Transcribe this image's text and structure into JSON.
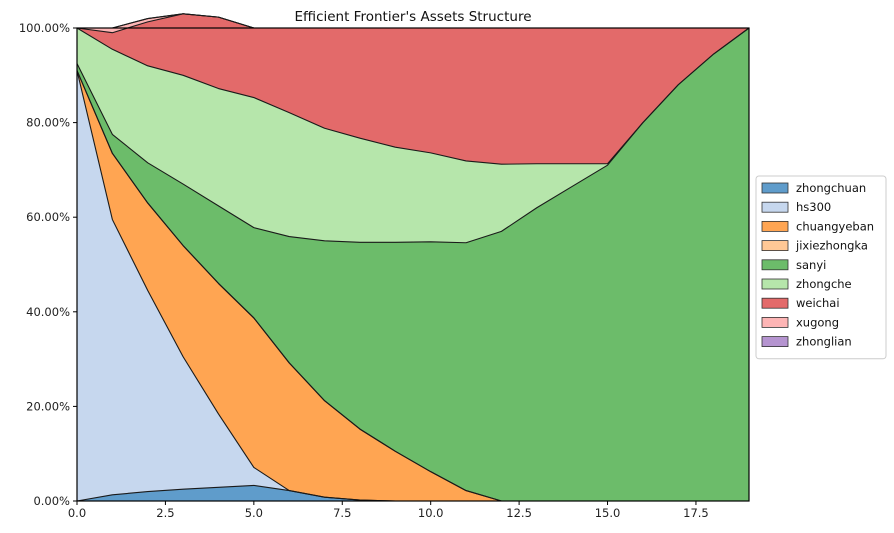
{
  "chart_data": {
    "type": "area",
    "title": "Efficient Frontier's Assets Structure",
    "xlabel": "",
    "ylabel": "",
    "xlim": [
      0,
      19
    ],
    "ylim": [
      0,
      100
    ],
    "x_ticks": [
      0,
      2.5,
      5,
      7.5,
      10,
      12.5,
      15,
      17.5
    ],
    "x_tick_labels": [
      "0.0",
      "2.5",
      "5.0",
      "7.5",
      "10.0",
      "12.5",
      "15.0",
      "17.5"
    ],
    "y_ticks": [
      0,
      20,
      40,
      60,
      80,
      100
    ],
    "y_tick_labels": [
      "0.00%",
      "20.00%",
      "40.00%",
      "60.00%",
      "80.00%",
      "100.00%"
    ],
    "grid": true,
    "legend_position": "right",
    "stacked": true,
    "x": [
      0,
      1,
      2,
      3,
      4,
      5,
      6,
      7,
      8,
      9,
      10,
      11,
      12,
      13,
      14,
      15,
      16,
      17,
      18,
      19
    ],
    "series": [
      {
        "name": "zhongchuan",
        "color": "#5f9ccb",
        "values": [
          0.0,
          1.3,
          2.0,
          2.5,
          2.9,
          3.3,
          2.2,
          0.8,
          0.2,
          0,
          0,
          0,
          0,
          0,
          0,
          0,
          0,
          0,
          0,
          0
        ]
      },
      {
        "name": "hs300",
        "color": "#c6d7ee",
        "values": [
          91.0,
          58.2,
          42.5,
          28.0,
          15.5,
          3.8,
          0,
          0,
          0,
          0,
          0,
          0,
          0,
          0,
          0,
          0,
          0,
          0,
          0,
          0
        ]
      },
      {
        "name": "chuangyeban",
        "color": "#ffa552",
        "values": [
          0.0,
          14.0,
          18.5,
          23.5,
          27.6,
          31.6,
          27.0,
          20.4,
          15.0,
          10.5,
          6.2,
          2.2,
          0,
          0,
          0,
          0,
          0,
          0,
          0,
          0
        ]
      },
      {
        "name": "jixiezhongka",
        "color": "#ffc896",
        "values": [
          0,
          0,
          0,
          0,
          0,
          0,
          0,
          0,
          0,
          0,
          0,
          0,
          0,
          0,
          0,
          0,
          0,
          0,
          0,
          0
        ]
      },
      {
        "name": "sanyi",
        "color": "#6cbc6a",
        "values": [
          1.5,
          4.0,
          8.5,
          13.0,
          16.4,
          19.1,
          26.7,
          33.8,
          39.5,
          44.2,
          48.6,
          52.4,
          57.0,
          62.0,
          66.5,
          71.0,
          80.0,
          88.0,
          94.5,
          100.0
        ]
      },
      {
        "name": "zhongche",
        "color": "#b6e6ab",
        "values": [
          7.5,
          18.0,
          20.5,
          23.0,
          24.8,
          27.5,
          26.2,
          23.8,
          22.0,
          20.1,
          18.8,
          17.3,
          14.2,
          9.3,
          4.8,
          0.3,
          0,
          0,
          0,
          0
        ]
      },
      {
        "name": "weichai",
        "color": "#e36a6a",
        "values": [
          0.0,
          3.5,
          9.3,
          13.0,
          15.1,
          14.7,
          17.9,
          21.2,
          23.3,
          25.2,
          26.4,
          28.1,
          28.8,
          28.7,
          28.7,
          28.7,
          20.0,
          12.0,
          5.5,
          0.0
        ]
      },
      {
        "name": "xugong",
        "color": "#fdb5b5",
        "values": [
          0,
          1.0,
          0.7,
          0,
          0,
          0,
          0,
          0,
          0,
          0,
          0,
          0,
          0,
          0,
          0,
          0,
          0,
          0,
          0,
          0
        ]
      },
      {
        "name": "zhonglian",
        "color": "#b594d0",
        "values": [
          0,
          0,
          0,
          0,
          0,
          0,
          0,
          0,
          0,
          0,
          0,
          0,
          0,
          0,
          0,
          0,
          0,
          0,
          0,
          0
        ]
      }
    ]
  }
}
